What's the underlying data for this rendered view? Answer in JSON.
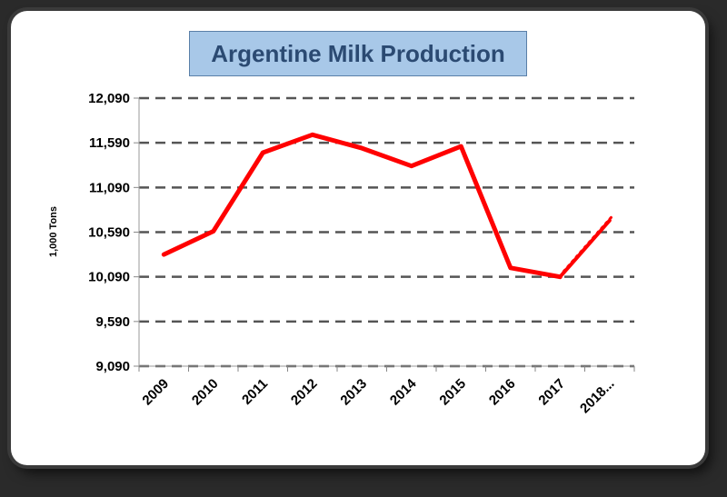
{
  "chart_data": {
    "type": "line",
    "title": "Argentine Milk Production",
    "ylabel": "1,000 Tons",
    "xlabel": "",
    "ylim": [
      9090,
      12090
    ],
    "yticks": [
      "12,090",
      "11,590",
      "11,090",
      "10,590",
      "10,090",
      "9,590",
      "9,090"
    ],
    "ytick_values": [
      12090,
      11590,
      11090,
      10590,
      10090,
      9590,
      9090
    ],
    "categories": [
      "2009",
      "2010",
      "2011",
      "2012",
      "2013",
      "2014",
      "2015",
      "2016",
      "2017",
      "2018..."
    ],
    "series": [
      {
        "values": [
          10340,
          10600,
          11480,
          11680,
          11530,
          11330,
          11550,
          10190,
          10090,
          null
        ]
      },
      {
        "values": [
          null,
          null,
          null,
          null,
          null,
          null,
          null,
          null,
          10090,
          10720
        ]
      }
    ],
    "grid": true,
    "colors": {
      "line": "#ff0000",
      "grid": "#555555",
      "title_bg": "#a8c8e8",
      "title_text": "#2b4a72"
    }
  }
}
